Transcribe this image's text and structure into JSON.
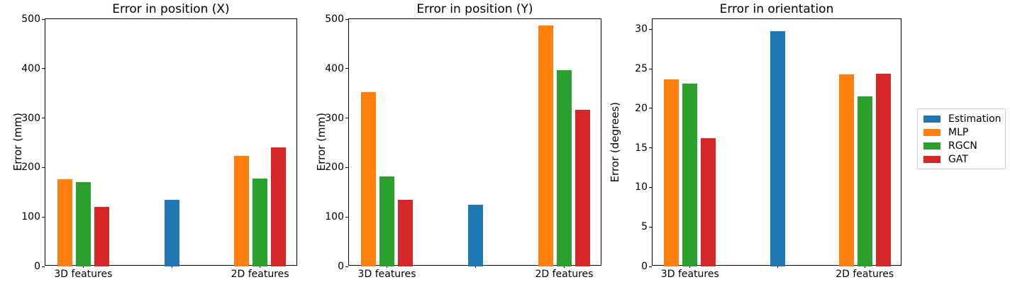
{
  "figure": {
    "background": "#ffffff",
    "text_color": "#000000"
  },
  "palette": {
    "Estimation": "#1f77b4",
    "MLP": "#ff7f0e",
    "RGCN": "#2ca02c",
    "GAT": "#d62728"
  },
  "legend": {
    "position": "right-of-third-chart",
    "items": [
      {
        "label": "Estimation",
        "color": "#1f77b4"
      },
      {
        "label": "MLP",
        "color": "#ff7f0e"
      },
      {
        "label": "RGCN",
        "color": "#2ca02c"
      },
      {
        "label": "GAT",
        "color": "#d62728"
      }
    ]
  },
  "chart_data": [
    {
      "type": "bar",
      "title": "Error in position (X)",
      "xlabel": "",
      "ylabel": "Error (mm)",
      "categories": [
        "3D features",
        "",
        "2D features"
      ],
      "yticks": [
        0,
        100,
        200,
        300,
        400,
        500
      ],
      "ylim": [
        0,
        500
      ],
      "grid": false,
      "series": [
        {
          "name": "Estimation",
          "values": [
            null,
            135,
            null
          ]
        },
        {
          "name": "MLP",
          "values": [
            176,
            null,
            224
          ]
        },
        {
          "name": "RGCN",
          "values": [
            170,
            null,
            177
          ]
        },
        {
          "name": "GAT",
          "values": [
            120,
            null,
            240
          ]
        }
      ]
    },
    {
      "type": "bar",
      "title": "Error in position (Y)",
      "xlabel": "",
      "ylabel": "Error (mm)",
      "categories": [
        "3D features",
        "",
        "2D features"
      ],
      "yticks": [
        0,
        100,
        200,
        300,
        400,
        500
      ],
      "ylim": [
        0,
        500
      ],
      "grid": false,
      "series": [
        {
          "name": "Estimation",
          "values": [
            null,
            125,
            null
          ]
        },
        {
          "name": "MLP",
          "values": [
            353,
            null,
            487
          ]
        },
        {
          "name": "RGCN",
          "values": [
            182,
            null,
            397
          ]
        },
        {
          "name": "GAT",
          "values": [
            135,
            null,
            317
          ]
        }
      ]
    },
    {
      "type": "bar",
      "title": "Error in orientation",
      "xlabel": "",
      "ylabel": "Error (degrees)",
      "categories": [
        "3D features",
        "",
        "2D features"
      ],
      "yticks": [
        0,
        5,
        10,
        15,
        20,
        25,
        30
      ],
      "ylim": [
        0,
        31.3
      ],
      "grid": false,
      "series": [
        {
          "name": "Estimation",
          "values": [
            null,
            29.8,
            null
          ]
        },
        {
          "name": "MLP",
          "values": [
            23.7,
            null,
            24.3
          ]
        },
        {
          "name": "RGCN",
          "values": [
            23.1,
            null,
            21.5
          ]
        },
        {
          "name": "GAT",
          "values": [
            16.2,
            null,
            24.4
          ]
        }
      ]
    }
  ]
}
